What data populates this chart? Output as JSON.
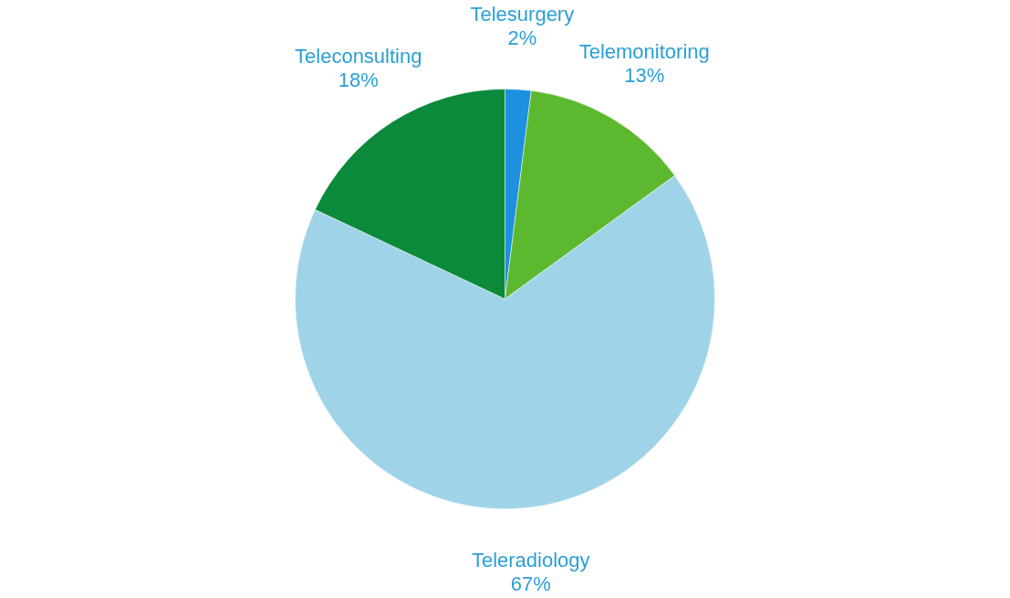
{
  "chart_data": {
    "type": "pie",
    "categories": [
      "Telesurgery",
      "Telemonitoring",
      "Teleradiology",
      "Teleconsulting"
    ],
    "values": [
      2,
      13,
      67,
      18
    ],
    "value_labels": [
      "2%",
      "13%",
      "67%",
      "18%"
    ],
    "colors": [
      "#1e90e0",
      "#5cb82e",
      "#9fd3e8",
      "#0a8a3a"
    ],
    "legend": false
  }
}
